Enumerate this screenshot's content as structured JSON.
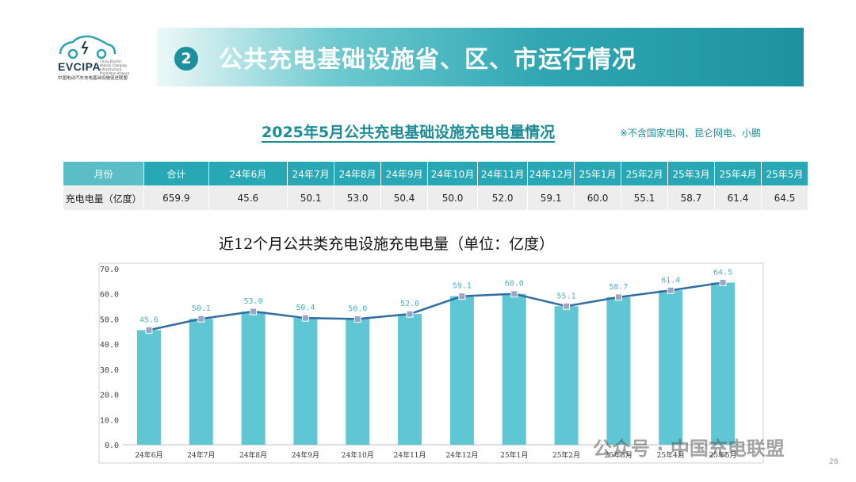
{
  "logo": {
    "name": "EVCIPA",
    "small_text": "China Electric Vehicle Charging Infrastructure Promotion Alliance",
    "subtitle": "中国电动汽车充电基础设施促进联盟"
  },
  "banner": {
    "number": "2",
    "title": "公共充电基础设施省、区、市运行情况"
  },
  "section": {
    "title": "2025年5月公共充电基础设施充电电量情况",
    "note": "※不含国家电网、昆仑网电、小鹏"
  },
  "table": {
    "header": [
      "月份",
      "合计",
      "24年6月",
      "24年7月",
      "24年8月",
      "24年9月",
      "24年10月",
      "24年11月",
      "24年12月",
      "25年1月",
      "25年2月",
      "25年3月",
      "25年4月",
      "25年5月"
    ],
    "row": [
      "充电电量（亿度）",
      "659.9",
      "45.6",
      "50.1",
      "53.0",
      "50.4",
      "50.0",
      "52.0",
      "59.1",
      "60.0",
      "55.1",
      "58.7",
      "61.4",
      "64.5"
    ]
  },
  "chart_data": {
    "type": "bar",
    "title": "近12个月公共类充电设施充电电量（单位：亿度）",
    "categories": [
      "24年6月",
      "24年7月",
      "24年8月",
      "24年9月",
      "24年10月",
      "24年11月",
      "24年12月",
      "25年1月",
      "25年2月",
      "25年3月",
      "25年4月",
      "25年5月"
    ],
    "values": [
      45.6,
      50.1,
      53.0,
      50.4,
      50.0,
      52.0,
      59.1,
      60.0,
      55.1,
      58.7,
      61.4,
      64.5
    ],
    "value_labels": [
      "45.6",
      "50.1",
      "53.0",
      "50.4",
      "50.0",
      "52.0",
      "59.1",
      "60.0",
      "55.1",
      "58.7",
      "61.4",
      "64.5"
    ],
    "yticks": [
      "0.0",
      "10.0",
      "20.0",
      "30.0",
      "40.0",
      "50.0",
      "60.0",
      "70.0"
    ],
    "ylim": [
      0,
      70
    ],
    "overlay": "line with square markers on same values",
    "grid": false,
    "colors": {
      "bar": "#5fc6d3",
      "line": "#2f6da3",
      "marker": "#9aa6c6",
      "label": "#49b2c0"
    }
  },
  "watermark": "公众号 · 中国充电联盟",
  "page_number": "28"
}
